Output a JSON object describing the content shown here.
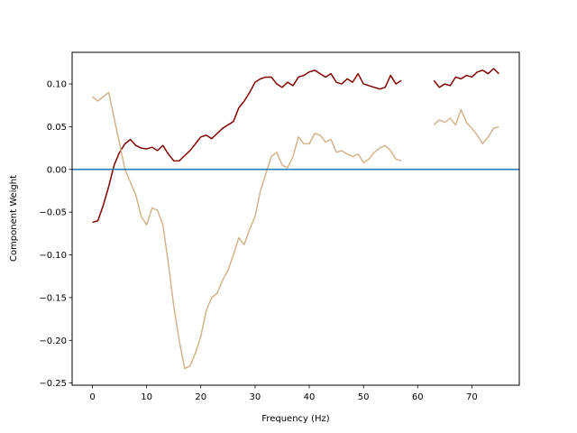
{
  "chart_data": {
    "type": "line",
    "title": "",
    "xlabel": "Frequency (Hz)",
    "ylabel": "Component Weight",
    "xlim": [
      -3.75,
      78.75
    ],
    "ylim": [
      -0.2525,
      0.137
    ],
    "xticks": [
      0,
      10,
      20,
      30,
      40,
      50,
      60,
      70
    ],
    "yticks": [
      -0.25,
      -0.2,
      -0.15,
      -0.1,
      -0.05,
      0.0,
      0.05,
      0.1
    ],
    "ytick_labels": [
      "−0.25",
      "−0.20",
      "−0.15",
      "−0.10",
      "−0.05",
      "0.00",
      "0.05",
      "0.10"
    ],
    "grid": false,
    "legend": false,
    "hline": {
      "y": 0.0,
      "color": "#1f77b4"
    },
    "series": [
      {
        "color": "#800000",
        "points": [
          [
            0,
            -0.062
          ],
          [
            1,
            -0.06
          ],
          [
            2,
            -0.042
          ],
          [
            3,
            -0.02
          ],
          [
            4,
            0.005
          ],
          [
            5,
            0.02
          ],
          [
            6,
            0.03
          ],
          [
            7,
            0.035
          ],
          [
            8,
            0.028
          ],
          [
            9,
            0.025
          ],
          [
            10,
            0.024
          ],
          [
            11,
            0.026
          ],
          [
            12,
            0.022
          ],
          [
            13,
            0.028
          ],
          [
            14,
            0.018
          ],
          [
            15,
            0.01
          ],
          [
            16,
            0.01
          ],
          [
            17,
            0.016
          ],
          [
            18,
            0.022
          ],
          [
            19,
            0.03
          ],
          [
            20,
            0.038
          ],
          [
            21,
            0.04
          ],
          [
            22,
            0.036
          ],
          [
            23,
            0.042
          ],
          [
            24,
            0.048
          ],
          [
            25,
            0.052
          ],
          [
            26,
            0.056
          ],
          [
            27,
            0.072
          ],
          [
            28,
            0.08
          ],
          [
            29,
            0.09
          ],
          [
            30,
            0.102
          ],
          [
            31,
            0.106
          ],
          [
            32,
            0.108
          ],
          [
            33,
            0.108
          ],
          [
            34,
            0.1
          ],
          [
            35,
            0.096
          ],
          [
            36,
            0.102
          ],
          [
            37,
            0.098
          ],
          [
            38,
            0.108
          ],
          [
            39,
            0.11
          ],
          [
            40,
            0.114
          ],
          [
            41,
            0.116
          ],
          [
            42,
            0.112
          ],
          [
            43,
            0.108
          ],
          [
            44,
            0.112
          ],
          [
            45,
            0.102
          ],
          [
            46,
            0.1
          ],
          [
            47,
            0.106
          ],
          [
            48,
            0.102
          ],
          [
            49,
            0.112
          ],
          [
            50,
            0.1
          ],
          [
            51,
            0.098
          ],
          [
            52,
            0.096
          ],
          [
            53,
            0.094
          ],
          [
            54,
            0.096
          ],
          [
            55,
            0.11
          ],
          [
            56,
            0.1
          ],
          [
            57,
            0.104
          ],
          null,
          [
            63,
            0.104
          ],
          [
            64,
            0.096
          ],
          [
            65,
            0.1
          ],
          [
            66,
            0.098
          ],
          [
            67,
            0.108
          ],
          [
            68,
            0.106
          ],
          [
            69,
            0.11
          ],
          [
            70,
            0.108
          ],
          [
            71,
            0.114
          ],
          [
            72,
            0.116
          ],
          [
            73,
            0.112
          ],
          [
            74,
            0.118
          ],
          [
            75,
            0.112
          ]
        ]
      },
      {
        "color": "#d2b48c",
        "points": [
          [
            0,
            0.085
          ],
          [
            1,
            0.08
          ],
          [
            2,
            0.085
          ],
          [
            3,
            0.09
          ],
          [
            4,
            0.06
          ],
          [
            5,
            0.03
          ],
          [
            6,
            0.0
          ],
          [
            7,
            -0.015
          ],
          [
            8,
            -0.03
          ],
          [
            9,
            -0.055
          ],
          [
            10,
            -0.065
          ],
          [
            11,
            -0.045
          ],
          [
            12,
            -0.048
          ],
          [
            13,
            -0.065
          ],
          [
            14,
            -0.11
          ],
          [
            15,
            -0.16
          ],
          [
            16,
            -0.2
          ],
          [
            17,
            -0.233
          ],
          [
            18,
            -0.23
          ],
          [
            19,
            -0.215
          ],
          [
            20,
            -0.195
          ],
          [
            21,
            -0.165
          ],
          [
            22,
            -0.15
          ],
          [
            23,
            -0.145
          ],
          [
            24,
            -0.13
          ],
          [
            25,
            -0.118
          ],
          [
            26,
            -0.1
          ],
          [
            27,
            -0.08
          ],
          [
            28,
            -0.088
          ],
          [
            29,
            -0.07
          ],
          [
            30,
            -0.055
          ],
          [
            31,
            -0.025
          ],
          [
            32,
            -0.005
          ],
          [
            33,
            0.015
          ],
          [
            34,
            0.02
          ],
          [
            35,
            0.005
          ],
          [
            36,
            0.002
          ],
          [
            37,
            0.015
          ],
          [
            38,
            0.038
          ],
          [
            39,
            0.03
          ],
          [
            40,
            0.03
          ],
          [
            41,
            0.042
          ],
          [
            42,
            0.04
          ],
          [
            43,
            0.032
          ],
          [
            44,
            0.035
          ],
          [
            45,
            0.02
          ],
          [
            46,
            0.022
          ],
          [
            47,
            0.018
          ],
          [
            48,
            0.015
          ],
          [
            49,
            0.018
          ],
          [
            50,
            0.008
          ],
          [
            51,
            0.012
          ],
          [
            52,
            0.02
          ],
          [
            53,
            0.025
          ],
          [
            54,
            0.028
          ],
          [
            55,
            0.022
          ],
          [
            56,
            0.012
          ],
          [
            57,
            0.01
          ],
          null,
          [
            63,
            0.052
          ],
          [
            64,
            0.058
          ],
          [
            65,
            0.055
          ],
          [
            66,
            0.06
          ],
          [
            67,
            0.052
          ],
          [
            68,
            0.07
          ],
          [
            69,
            0.055
          ],
          [
            70,
            0.048
          ],
          [
            71,
            0.04
          ],
          [
            72,
            0.03
          ],
          [
            73,
            0.038
          ],
          [
            74,
            0.048
          ],
          [
            75,
            0.05
          ]
        ]
      }
    ]
  }
}
